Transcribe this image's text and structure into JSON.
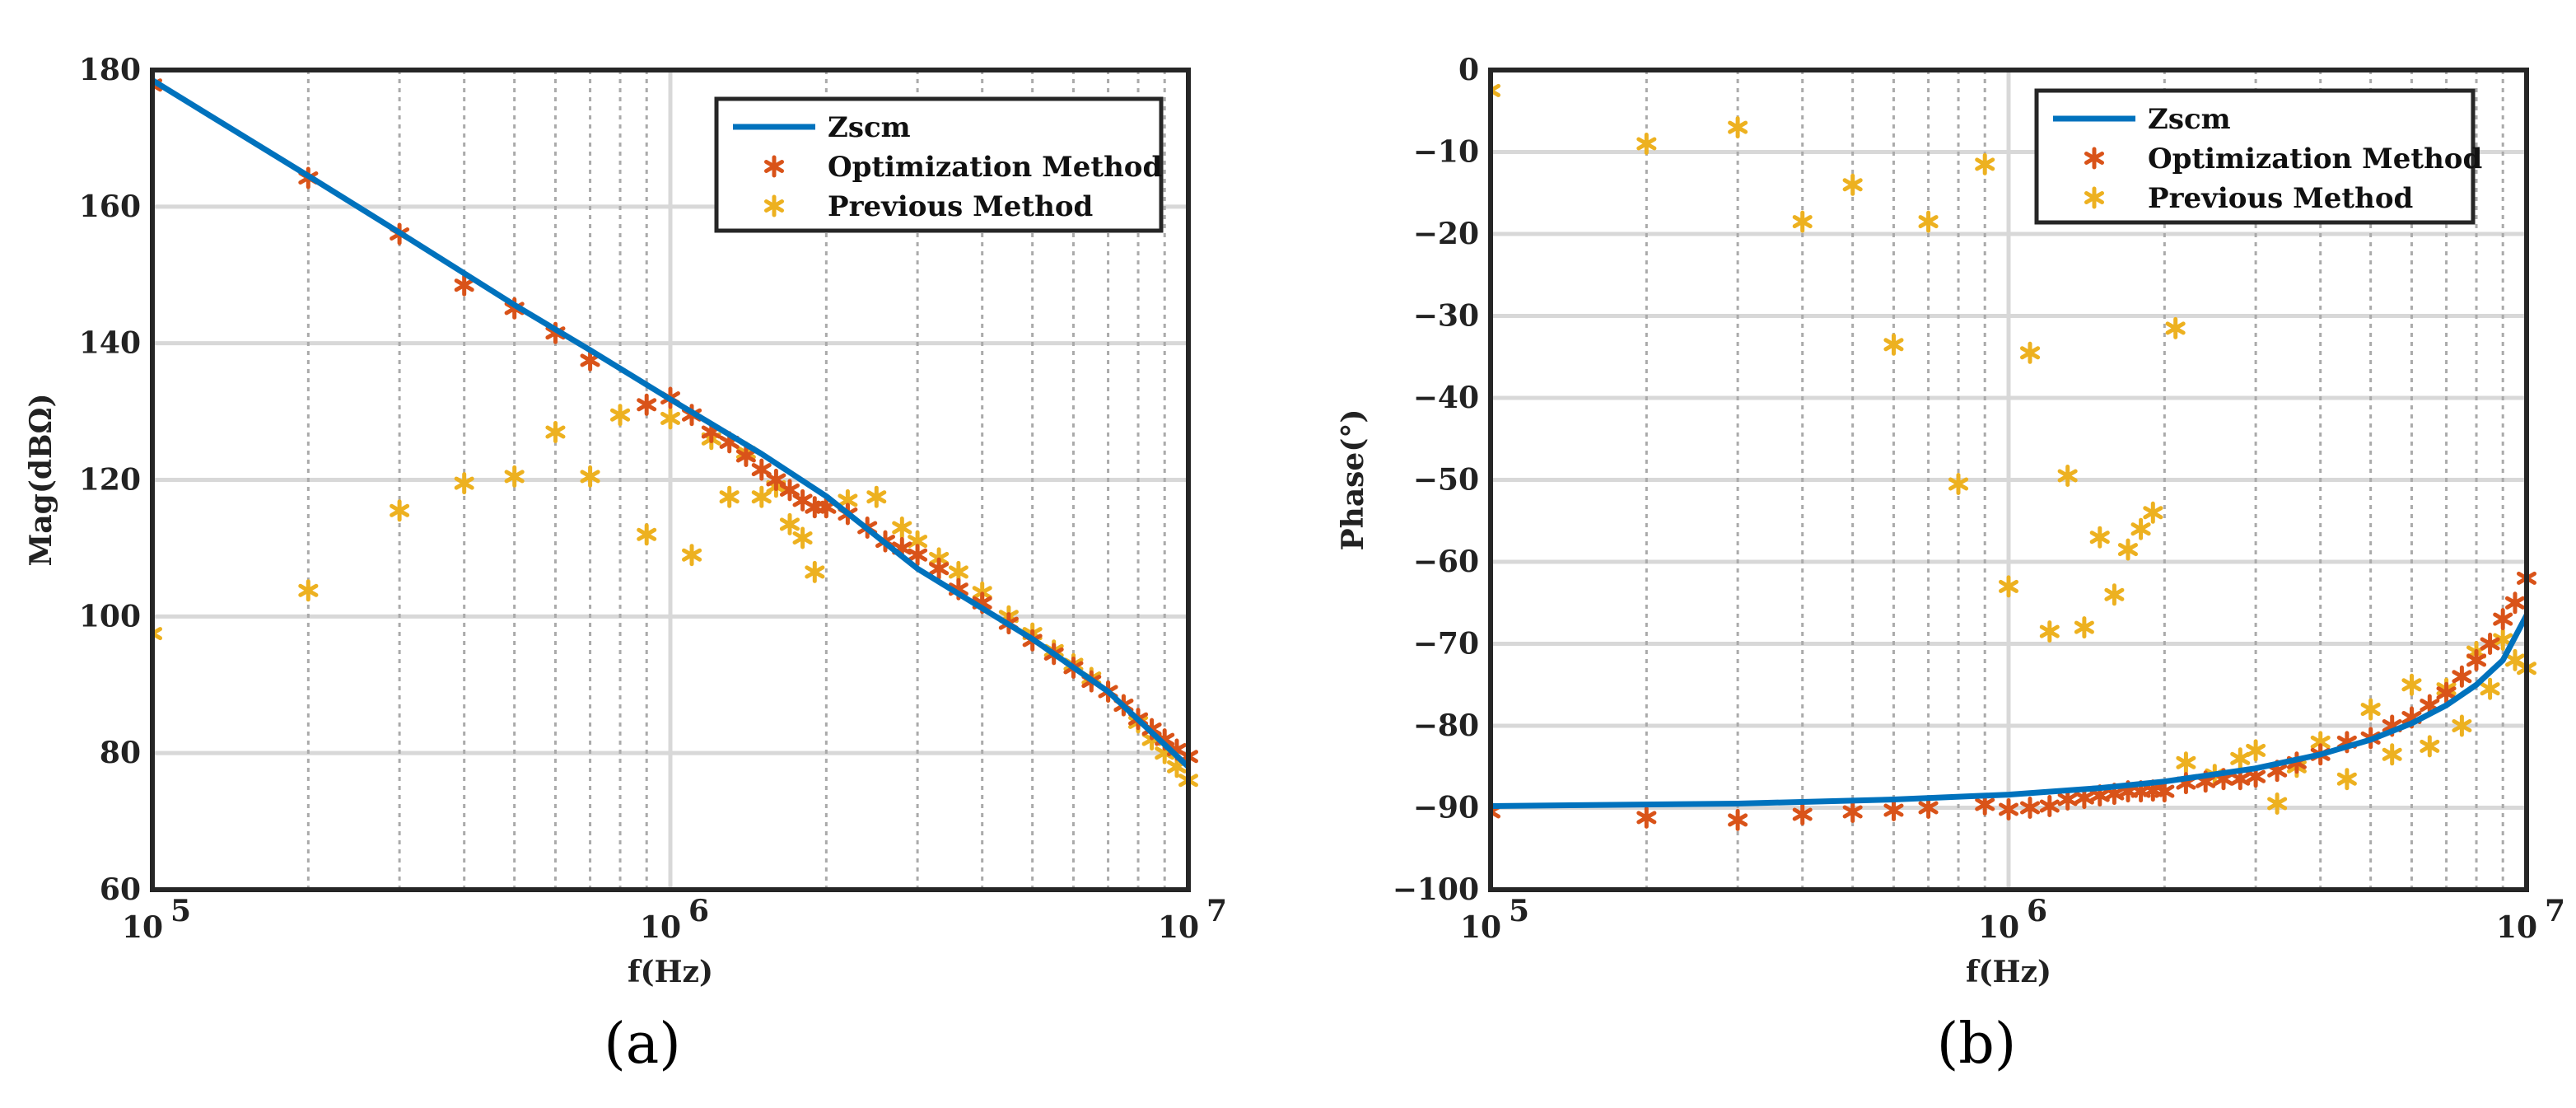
{
  "figure": {
    "colors": {
      "zscm": "#0072bd",
      "optimization": "#d95319",
      "previous": "#edb120"
    }
  },
  "chart_data": [
    {
      "type": "line",
      "panel": "a",
      "caption": "(a)",
      "xlabel": "f(Hz)",
      "ylabel": "Mag(dBΩ)",
      "xscale": "log",
      "xlim": [
        100000,
        10000000
      ],
      "ylim": [
        60,
        180
      ],
      "xticks": [
        {
          "value": 100000,
          "base": "10",
          "exp": "5"
        },
        {
          "value": 1000000,
          "base": "10",
          "exp": "6"
        },
        {
          "value": 10000000,
          "base": "10",
          "exp": "7"
        }
      ],
      "yticks": [
        "60",
        "80",
        "100",
        "120",
        "140",
        "160",
        "180"
      ],
      "legend": {
        "position": "top-right",
        "entries": [
          "Zscm",
          "Optimization Method",
          "Previous Method"
        ]
      },
      "series": [
        {
          "name": "Zscm",
          "kind": "line",
          "x": [
            100000,
            200000,
            300000,
            500000,
            700000,
            1000000,
            1500000,
            2000000,
            3000000,
            5000000,
            7000000,
            10000000
          ],
          "y": [
            178.5,
            164.5,
            156.2,
            145.6,
            139.0,
            131.8,
            123.8,
            117.6,
            107.0,
            96.7,
            89.0,
            78.0
          ]
        },
        {
          "name": "Optimization Method",
          "kind": "scatter",
          "x": [
            100000,
            200000,
            300000,
            400000,
            500000,
            600000,
            700000,
            900000,
            1000000,
            1100000,
            1200000,
            1300000,
            1400000,
            1500000,
            1600000,
            1700000,
            1800000,
            1900000,
            2000000,
            2200000,
            2400000,
            2600000,
            2800000,
            3000000,
            3300000,
            3600000,
            4000000,
            4500000,
            5000000,
            5500000,
            6000000,
            6500000,
            7000000,
            7500000,
            8000000,
            8500000,
            9000000,
            9500000,
            10000000
          ],
          "y": [
            177.8,
            164.2,
            156.0,
            148.5,
            145.1,
            141.5,
            137.5,
            131.0,
            132.0,
            129.5,
            127.0,
            125.5,
            123.5,
            121.5,
            120.0,
            118.5,
            117.0,
            116.0,
            116.0,
            115.0,
            113.0,
            111.0,
            110.0,
            109.0,
            107.0,
            104.0,
            102.0,
            99.0,
            96.5,
            94.5,
            92.5,
            90.5,
            89.0,
            87.0,
            85.0,
            83.5,
            82.0,
            80.5,
            79.5
          ]
        },
        {
          "name": "Previous Method",
          "kind": "scatter",
          "x": [
            100000,
            200000,
            300000,
            400000,
            500000,
            600000,
            700000,
            800000,
            900000,
            1000000,
            1100000,
            1200000,
            1300000,
            1400000,
            1500000,
            1600000,
            1700000,
            1800000,
            1900000,
            2000000,
            2200000,
            2500000,
            2800000,
            3000000,
            3300000,
            3600000,
            4000000,
            4500000,
            5000000,
            5500000,
            6000000,
            6500000,
            7000000,
            7500000,
            8000000,
            8500000,
            9000000,
            9500000,
            10000000
          ],
          "y": [
            97.5,
            103.8,
            115.5,
            119.5,
            120.5,
            127.0,
            120.5,
            129.5,
            112.0,
            129.0,
            109.0,
            126.0,
            117.5,
            124.0,
            117.5,
            119.0,
            113.5,
            111.5,
            106.5,
            116.0,
            117.0,
            117.5,
            113.0,
            111.0,
            108.5,
            106.5,
            103.5,
            100.0,
            97.5,
            95.0,
            93.0,
            91.0,
            89.0,
            87.0,
            84.5,
            82.0,
            80.0,
            78.0,
            76.0
          ]
        }
      ]
    },
    {
      "type": "line",
      "panel": "b",
      "caption": "(b)",
      "xlabel": "f(Hz)",
      "ylabel": "Phase(°)",
      "xscale": "log",
      "xlim": [
        100000,
        10000000
      ],
      "ylim": [
        -100,
        0
      ],
      "xticks": [
        {
          "value": 100000,
          "base": "10",
          "exp": "5"
        },
        {
          "value": 1000000,
          "base": "10",
          "exp": "6"
        },
        {
          "value": 10000000,
          "base": "10",
          "exp": "7"
        }
      ],
      "yticks": [
        "−100",
        "−90",
        "−80",
        "−70",
        "−60",
        "−50",
        "−40",
        "−30",
        "−20",
        "−10",
        "0"
      ],
      "legend": {
        "position": "top-right",
        "entries": [
          "Zscm",
          "Optimization Method",
          "Previous Method"
        ]
      },
      "series": [
        {
          "name": "Zscm",
          "kind": "line",
          "x": [
            100000,
            300000,
            600000,
            1000000,
            1500000,
            2000000,
            3000000,
            4000000,
            5000000,
            6000000,
            7000000,
            8000000,
            9000000,
            10000000
          ],
          "y": [
            -89.8,
            -89.5,
            -89.0,
            -88.4,
            -87.6,
            -86.8,
            -85.2,
            -83.5,
            -81.7,
            -79.7,
            -77.5,
            -75.0,
            -72.0,
            -66.5
          ]
        },
        {
          "name": "Optimization Method",
          "kind": "scatter",
          "x": [
            100000,
            200000,
            300000,
            400000,
            500000,
            600000,
            700000,
            900000,
            1000000,
            1100000,
            1200000,
            1300000,
            1400000,
            1500000,
            1600000,
            1700000,
            1800000,
            1900000,
            2000000,
            2200000,
            2400000,
            2600000,
            2800000,
            3000000,
            3300000,
            3600000,
            4000000,
            4500000,
            5000000,
            5500000,
            6000000,
            6500000,
            7000000,
            7500000,
            8000000,
            8500000,
            9000000,
            9500000,
            10000000
          ],
          "y": [
            -90.5,
            -91.2,
            -91.5,
            -90.8,
            -90.5,
            -90.3,
            -90.0,
            -89.6,
            -90.2,
            -90.0,
            -89.8,
            -89.0,
            -88.8,
            -88.5,
            -88.3,
            -88.0,
            -88.0,
            -87.9,
            -88.0,
            -87.0,
            -86.8,
            -86.5,
            -86.5,
            -86.2,
            -85.5,
            -84.5,
            -83.5,
            -82.0,
            -81.5,
            -80.0,
            -79.0,
            -77.5,
            -76.0,
            -74.0,
            -72.0,
            -70.0,
            -67.0,
            -65.0,
            -62.0
          ]
        },
        {
          "name": "Previous Method",
          "kind": "scatter",
          "x": [
            100000,
            200000,
            300000,
            400000,
            500000,
            600000,
            700000,
            800000,
            900000,
            1000000,
            1100000,
            1200000,
            1300000,
            1400000,
            1500000,
            1600000,
            1700000,
            1800000,
            1900000,
            2100000,
            2200000,
            2500000,
            2800000,
            3000000,
            3300000,
            3600000,
            4000000,
            4500000,
            5000000,
            5500000,
            6000000,
            6500000,
            7000000,
            7500000,
            8000000,
            8500000,
            9000000,
            9500000,
            10000000
          ],
          "y": [
            -2.5,
            -9.0,
            -7.0,
            -18.5,
            -14.0,
            -33.5,
            -18.5,
            -50.5,
            -11.5,
            -63.0,
            -34.5,
            -68.5,
            -49.5,
            -68.0,
            -57.0,
            -64.0,
            -58.5,
            -56.0,
            -54.0,
            -31.5,
            -84.5,
            -86.0,
            -84.0,
            -83.0,
            -89.5,
            -85.0,
            -82.0,
            -86.5,
            -78.0,
            -83.5,
            -75.0,
            -82.5,
            -75.5,
            -80.0,
            -71.0,
            -75.5,
            -69.5,
            -72.0,
            -73.0
          ]
        }
      ]
    }
  ]
}
